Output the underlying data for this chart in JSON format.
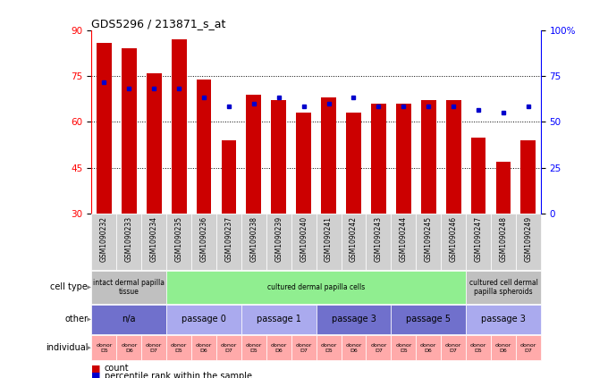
{
  "title": "GDS5296 / 213871_s_at",
  "samples": [
    "GSM1090232",
    "GSM1090233",
    "GSM1090234",
    "GSM1090235",
    "GSM1090236",
    "GSM1090237",
    "GSM1090238",
    "GSM1090239",
    "GSM1090240",
    "GSM1090241",
    "GSM1090242",
    "GSM1090243",
    "GSM1090244",
    "GSM1090245",
    "GSM1090246",
    "GSM1090247",
    "GSM1090248",
    "GSM1090249"
  ],
  "bar_heights": [
    86,
    84,
    76,
    87,
    74,
    54,
    69,
    67,
    63,
    68,
    63,
    66,
    66,
    67,
    67,
    55,
    47,
    54
  ],
  "blue_y": [
    73,
    71,
    71,
    71,
    68,
    65,
    66,
    68,
    65,
    66,
    68,
    65,
    65,
    65,
    65,
    64,
    63,
    65
  ],
  "ylim_left": [
    30,
    90
  ],
  "ylim_right": [
    0,
    100
  ],
  "yticks_left": [
    30,
    45,
    60,
    75,
    90
  ],
  "yticks_right": [
    0,
    25,
    50,
    75,
    100
  ],
  "bar_color": "#cc0000",
  "dot_color": "#0000cc",
  "grid_lines": [
    45,
    60,
    75
  ],
  "cell_type_groups": [
    {
      "label": "intact dermal papilla\ntissue",
      "start": 0,
      "end": 3,
      "color": "#c0c0c0"
    },
    {
      "label": "cultured dermal papilla cells",
      "start": 3,
      "end": 15,
      "color": "#90ee90"
    },
    {
      "label": "cultured cell dermal\npapilla spheroids",
      "start": 15,
      "end": 18,
      "color": "#c0c0c0"
    }
  ],
  "other_groups": [
    {
      "label": "n/a",
      "start": 0,
      "end": 3,
      "color": "#7070cc"
    },
    {
      "label": "passage 0",
      "start": 3,
      "end": 6,
      "color": "#aaaaee"
    },
    {
      "label": "passage 1",
      "start": 6,
      "end": 9,
      "color": "#aaaaee"
    },
    {
      "label": "passage 3",
      "start": 9,
      "end": 12,
      "color": "#7070cc"
    },
    {
      "label": "passage 5",
      "start": 12,
      "end": 15,
      "color": "#7070cc"
    },
    {
      "label": "passage 3",
      "start": 15,
      "end": 18,
      "color": "#aaaaee"
    }
  ],
  "individual_donors": [
    "D5",
    "D6",
    "D7",
    "D5",
    "D6",
    "D7",
    "D5",
    "D6",
    "D7",
    "D5",
    "D6",
    "D7",
    "D5",
    "D6",
    "D7",
    "D5",
    "D6",
    "D7"
  ],
  "individual_color": "#ffaaaa",
  "sample_bg_color": "#d0d0d0",
  "legend_count_label": "count",
  "legend_pct_label": "percentile rank within the sample",
  "row_labels": [
    "cell type",
    "other",
    "individual"
  ]
}
